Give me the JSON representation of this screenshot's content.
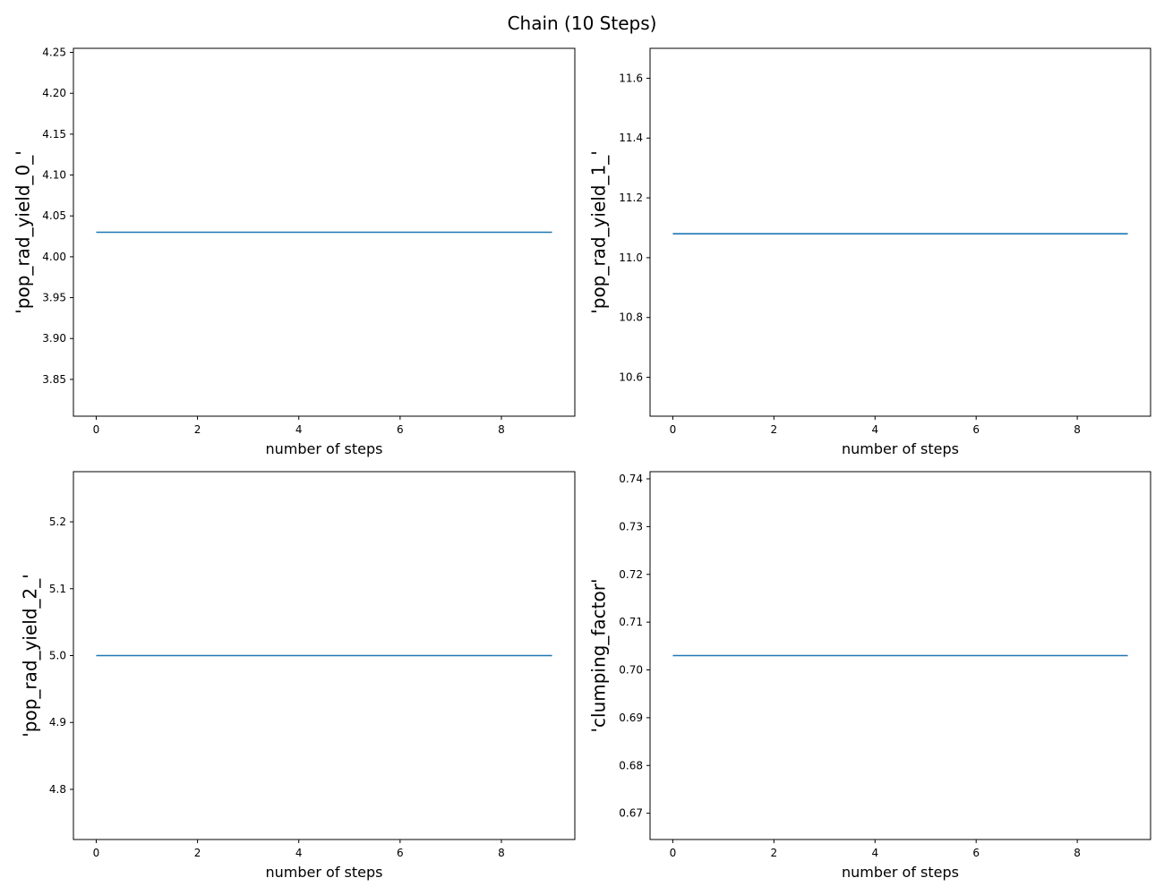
{
  "figure": {
    "title": "Chain (10 Steps)"
  },
  "chart_data": [
    {
      "type": "line",
      "title": "",
      "xlabel": "number of steps",
      "ylabel": "'pop_rad_yield_0_'",
      "xlim": [
        -0.45,
        9.45
      ],
      "ylim": [
        3.805,
        4.255
      ],
      "xticks": [
        0,
        2,
        4,
        6,
        8
      ],
      "yticks": [
        3.85,
        3.9,
        3.95,
        4.0,
        4.05,
        4.1,
        4.15,
        4.2,
        4.25
      ],
      "ytick_decimals": 2,
      "grid": false,
      "color": "#1f77b4",
      "x": [
        0,
        1,
        2,
        3,
        4,
        5,
        6,
        7,
        8,
        9
      ],
      "y": [
        4.03,
        4.03,
        4.03,
        4.03,
        4.03,
        4.03,
        4.03,
        4.03,
        4.03,
        4.03
      ]
    },
    {
      "type": "line",
      "title": "",
      "xlabel": "number of steps",
      "ylabel": "'pop_rad_yield_1_'",
      "xlim": [
        -0.45,
        9.45
      ],
      "ylim": [
        10.47,
        11.7
      ],
      "xticks": [
        0,
        2,
        4,
        6,
        8
      ],
      "yticks": [
        10.6,
        10.8,
        11.0,
        11.2,
        11.4,
        11.6
      ],
      "ytick_decimals": 1,
      "grid": false,
      "color": "#1f77b4",
      "x": [
        0,
        1,
        2,
        3,
        4,
        5,
        6,
        7,
        8,
        9
      ],
      "y": [
        11.08,
        11.08,
        11.08,
        11.08,
        11.08,
        11.08,
        11.08,
        11.08,
        11.08,
        11.08
      ]
    },
    {
      "type": "line",
      "title": "",
      "xlabel": "number of steps",
      "ylabel": "'pop_rad_yield_2_'",
      "xlim": [
        -0.45,
        9.45
      ],
      "ylim": [
        4.725,
        5.275
      ],
      "xticks": [
        0,
        2,
        4,
        6,
        8
      ],
      "yticks": [
        4.8,
        4.9,
        5.0,
        5.1,
        5.2
      ],
      "ytick_decimals": 1,
      "grid": false,
      "color": "#1f77b4",
      "x": [
        0,
        1,
        2,
        3,
        4,
        5,
        6,
        7,
        8,
        9
      ],
      "y": [
        5.0,
        5.0,
        5.0,
        5.0,
        5.0,
        5.0,
        5.0,
        5.0,
        5.0,
        5.0
      ]
    },
    {
      "type": "line",
      "title": "",
      "xlabel": "number of steps",
      "ylabel": "'clumping_factor'",
      "xlim": [
        -0.45,
        9.45
      ],
      "ylim": [
        0.6645,
        0.7415
      ],
      "xticks": [
        0,
        2,
        4,
        6,
        8
      ],
      "yticks": [
        0.67,
        0.68,
        0.69,
        0.7,
        0.71,
        0.72,
        0.73,
        0.74
      ],
      "ytick_decimals": 2,
      "grid": false,
      "color": "#1f77b4",
      "x": [
        0,
        1,
        2,
        3,
        4,
        5,
        6,
        7,
        8,
        9
      ],
      "y": [
        0.703,
        0.703,
        0.703,
        0.703,
        0.703,
        0.703,
        0.703,
        0.703,
        0.703,
        0.703
      ]
    }
  ]
}
